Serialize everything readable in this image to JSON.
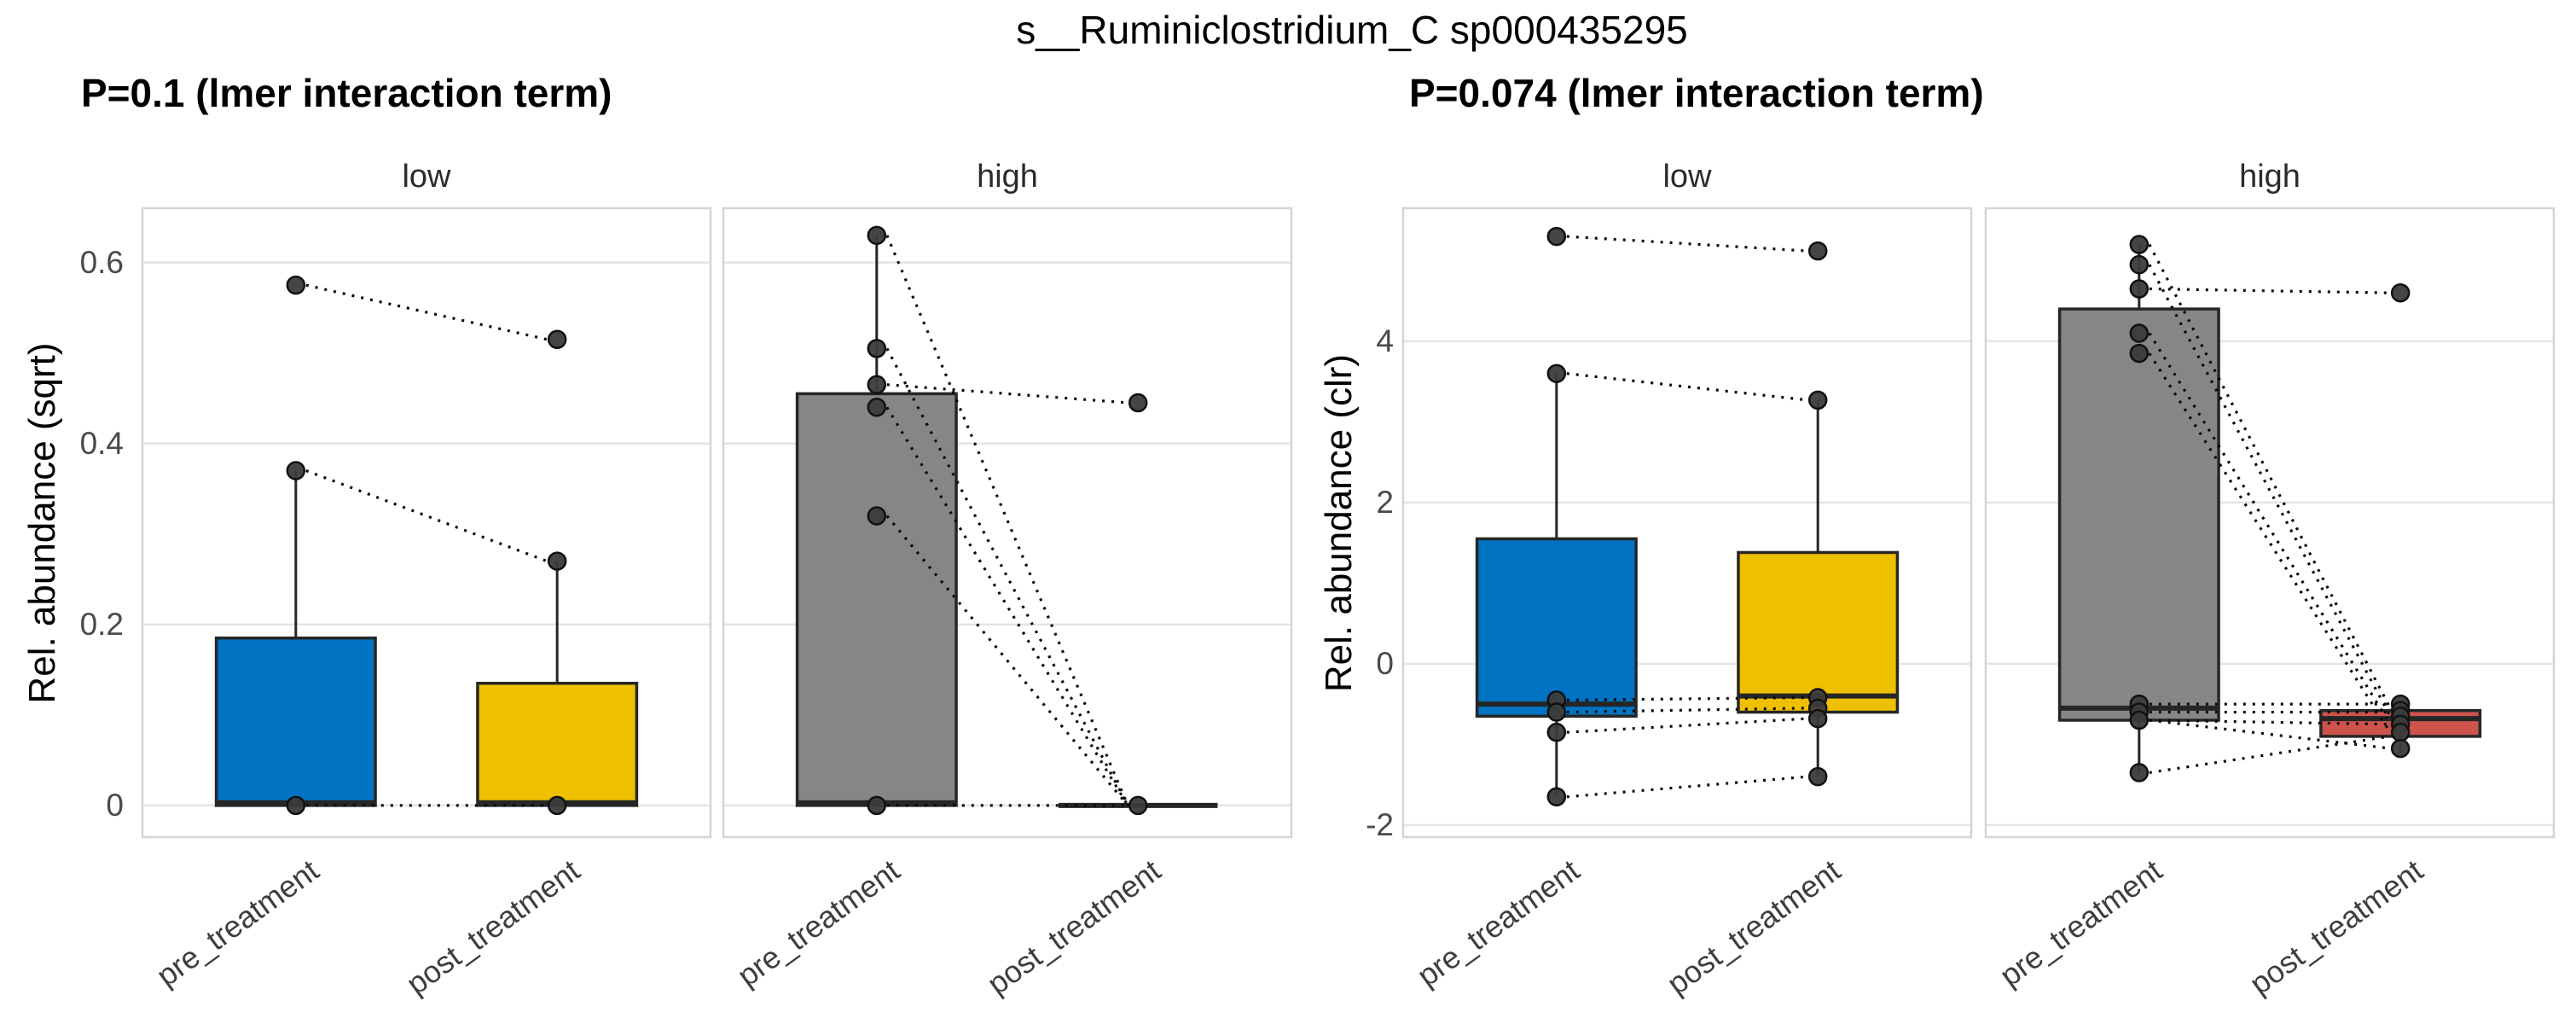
{
  "chart_data": {
    "type": "boxplot",
    "suptitle": "s__Ruminiclostridium_C sp000435295",
    "x_categories": [
      "pre_treatment",
      "post_treatment"
    ],
    "legend": "none",
    "grid": "horizontal-major-only",
    "paired_lines": "dotted lines connect paired pre/post samples",
    "plots": [
      {
        "title": "P=0.1 (lmer interaction term)",
        "ylabel": "Rel. abundance (sqrt)",
        "yticks": [
          0,
          0.2,
          0.4,
          0.6
        ],
        "ytick_labels": [
          "0",
          "0.2",
          "0.4",
          "0.6"
        ],
        "ylim": [
          -0.035,
          0.66
        ],
        "facets": [
          {
            "label": "low",
            "groups": [
              {
                "category": "pre_treatment",
                "color": "#0073C2",
                "box": {
                  "q1": 0,
                  "median": 0.003,
                  "q3": 0.185,
                  "whisker_low": 0,
                  "whisker_high": 0.37
                },
                "points": [
                  0.575,
                  0.37,
                  0
                ]
              },
              {
                "category": "post_treatment",
                "color": "#EFC000",
                "box": {
                  "q1": 0,
                  "median": 0.003,
                  "q3": 0.135,
                  "whisker_low": 0,
                  "whisker_high": 0.27
                },
                "points": [
                  0.515,
                  0.27,
                  0
                ]
              }
            ],
            "pairs": [
              [
                0.575,
                0.515
              ],
              [
                0.37,
                0.27
              ],
              [
                0,
                0
              ]
            ]
          },
          {
            "label": "high",
            "groups": [
              {
                "category": "pre_treatment",
                "color": "#868686",
                "box": {
                  "q1": 0,
                  "median": 0.003,
                  "q3": 0.455,
                  "whisker_low": 0,
                  "whisker_high": 0.63
                },
                "points": [
                  0.63,
                  0.505,
                  0.465,
                  0.44,
                  0.32,
                  0
                ]
              },
              {
                "category": "post_treatment",
                "color": "#868686",
                "box": {
                  "q1": 0,
                  "median": 0,
                  "q3": 0,
                  "whisker_low": 0,
                  "whisker_high": 0
                },
                "points": [
                  0.445,
                  0
                ]
              }
            ],
            "pairs": [
              [
                0.63,
                0
              ],
              [
                0.505,
                0
              ],
              [
                0.465,
                0.445
              ],
              [
                0.44,
                0
              ],
              [
                0.32,
                0
              ],
              [
                0,
                0
              ]
            ]
          }
        ]
      },
      {
        "title": "P=0.074 (lmer interaction term)",
        "ylabel": "Rel. abundance (clr)",
        "yticks": [
          -2,
          0,
          2,
          4
        ],
        "ytick_labels": [
          "-2",
          "0",
          "2",
          "4"
        ],
        "ylim": [
          -2.15,
          5.65
        ],
        "facets": [
          {
            "label": "low",
            "groups": [
              {
                "category": "pre_treatment",
                "color": "#0073C2",
                "box": {
                  "q1": -0.65,
                  "median": -0.5,
                  "q3": 1.55,
                  "whisker_low": -1.65,
                  "whisker_high": 3.6
                },
                "points": [
                  5.3,
                  3.6,
                  -0.45,
                  -0.6,
                  -0.85,
                  -1.65
                ]
              },
              {
                "category": "post_treatment",
                "color": "#EFC000",
                "box": {
                  "q1": -0.6,
                  "median": -0.4,
                  "q3": 1.38,
                  "whisker_low": -1.4,
                  "whisker_high": 3.27
                },
                "points": [
                  5.12,
                  3.27,
                  -0.42,
                  -0.55,
                  -0.68,
                  -1.4
                ]
              }
            ],
            "pairs": [
              [
                5.3,
                5.12
              ],
              [
                3.6,
                3.27
              ],
              [
                -0.45,
                -0.42
              ],
              [
                -0.6,
                -0.55
              ],
              [
                -0.85,
                -0.68
              ],
              [
                -1.65,
                -1.4
              ]
            ]
          },
          {
            "label": "high",
            "groups": [
              {
                "category": "pre_treatment",
                "color": "#868686",
                "box": {
                  "q1": -0.7,
                  "median": -0.55,
                  "q3": 4.4,
                  "whisker_low": -1.35,
                  "whisker_high": 5.2
                },
                "points": [
                  5.2,
                  4.95,
                  4.65,
                  4.1,
                  3.85,
                  -0.5,
                  -0.6,
                  -0.7,
                  -1.35
                ]
              },
              {
                "category": "post_treatment",
                "color": "#CD534C",
                "box": {
                  "q1": -0.9,
                  "median": -0.68,
                  "q3": -0.58,
                  "whisker_low": -1.1,
                  "whisker_high": -0.48
                },
                "points": [
                  4.6,
                  -0.5,
                  -0.58,
                  -0.65,
                  -0.75,
                  -0.85,
                  -1.05
                ]
              }
            ],
            "pairs": [
              [
                5.2,
                -0.55
              ],
              [
                4.95,
                -0.65
              ],
              [
                4.65,
                4.6
              ],
              [
                4.1,
                -0.75
              ],
              [
                3.85,
                -0.85
              ],
              [
                -0.5,
                -0.5
              ],
              [
                -0.6,
                -0.6
              ],
              [
                -0.7,
                -0.75
              ],
              [
                -1.35,
                -0.9
              ],
              [
                -0.7,
                -1.05
              ]
            ]
          }
        ]
      }
    ]
  }
}
